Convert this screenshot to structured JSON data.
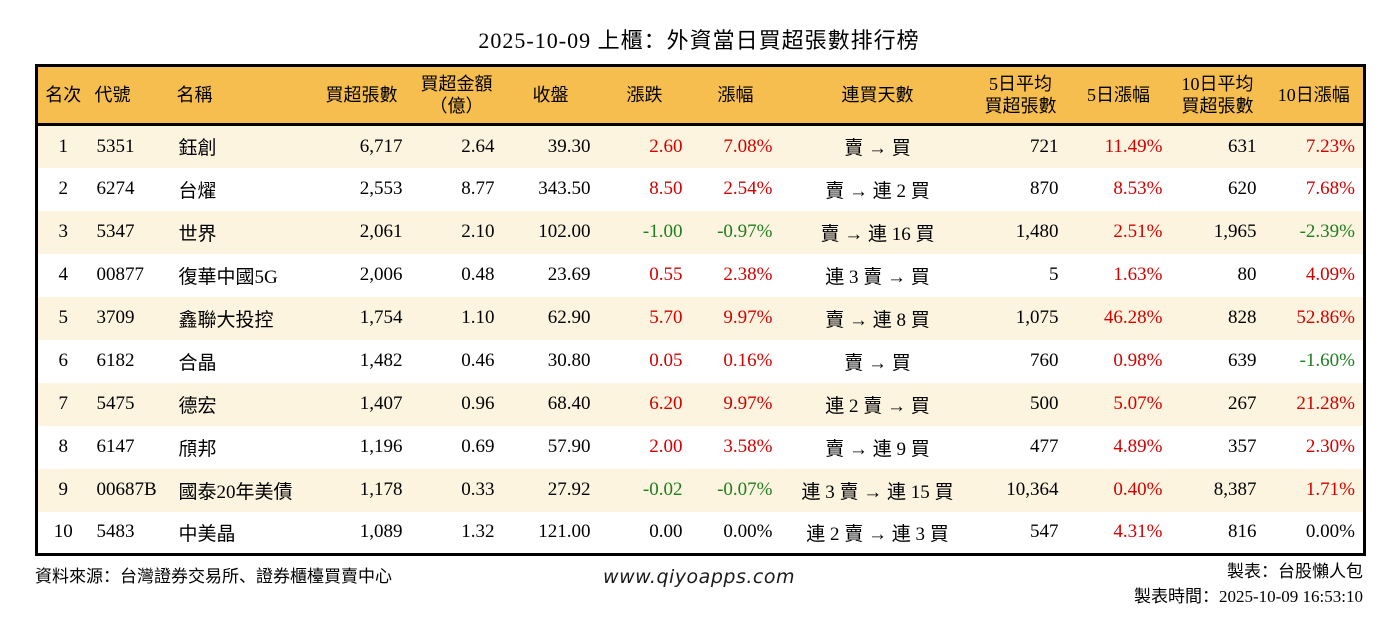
{
  "title": "2025-10-09 上櫃：外資當日買超張數排行榜",
  "colors": {
    "header_bg": "#f6be4e",
    "stripe_bg": "#fcf4df",
    "up_red": "#d40000",
    "down_green": "#1e7d1e",
    "border": "#000000"
  },
  "chart_data": {
    "type": "table",
    "title": "2025-10-09 上櫃：外資當日買超張數排行榜",
    "columns": [
      {
        "key": "rank",
        "label": "名次",
        "align": "center"
      },
      {
        "key": "code",
        "label": "代號",
        "align": "left"
      },
      {
        "key": "name",
        "label": "名稱",
        "align": "left"
      },
      {
        "key": "net_buy",
        "label": "買超張數",
        "align": "right"
      },
      {
        "key": "amount",
        "label_lines": [
          "買超金額",
          "（億）"
        ],
        "align": "right"
      },
      {
        "key": "close",
        "label": "收盤",
        "align": "right"
      },
      {
        "key": "change",
        "label": "漲跌",
        "align": "right"
      },
      {
        "key": "change_pct",
        "label": "漲幅",
        "align": "right"
      },
      {
        "key": "streak",
        "label": "連買天數",
        "align": "center"
      },
      {
        "key": "avg5",
        "label_lines": [
          "5日平均",
          "買超張數"
        ],
        "align": "right"
      },
      {
        "key": "pct5",
        "label": "5日漲幅",
        "align": "right"
      },
      {
        "key": "avg10",
        "label_lines": [
          "10日平均",
          "買超張數"
        ],
        "align": "right"
      },
      {
        "key": "pct10",
        "label": "10日漲幅",
        "align": "right"
      }
    ],
    "rows": [
      {
        "rank": "1",
        "code": "5351",
        "name": "鈺創",
        "net_buy": "6,717",
        "amount": "2.64",
        "close": "39.30",
        "change": "2.60",
        "change_color": "red",
        "change_pct": "7.08%",
        "change_pct_color": "red",
        "streak": "賣 → 買",
        "avg5": "721",
        "pct5": "11.49%",
        "pct5_color": "red",
        "avg10": "631",
        "pct10": "7.23%",
        "pct10_color": "red"
      },
      {
        "rank": "2",
        "code": "6274",
        "name": "台燿",
        "net_buy": "2,553",
        "amount": "8.77",
        "close": "343.50",
        "change": "8.50",
        "change_color": "red",
        "change_pct": "2.54%",
        "change_pct_color": "red",
        "streak": "賣 → 連 2 買",
        "avg5": "870",
        "pct5": "8.53%",
        "pct5_color": "red",
        "avg10": "620",
        "pct10": "7.68%",
        "pct10_color": "red"
      },
      {
        "rank": "3",
        "code": "5347",
        "name": "世界",
        "net_buy": "2,061",
        "amount": "2.10",
        "close": "102.00",
        "change": "-1.00",
        "change_color": "green",
        "change_pct": "-0.97%",
        "change_pct_color": "green",
        "streak": "賣 → 連 16 買",
        "avg5": "1,480",
        "pct5": "2.51%",
        "pct5_color": "red",
        "avg10": "1,965",
        "pct10": "-2.39%",
        "pct10_color": "green"
      },
      {
        "rank": "4",
        "code": "00877",
        "name": "復華中國5G",
        "net_buy": "2,006",
        "amount": "0.48",
        "close": "23.69",
        "change": "0.55",
        "change_color": "red",
        "change_pct": "2.38%",
        "change_pct_color": "red",
        "streak": "連 3 賣 → 買",
        "avg5": "5",
        "pct5": "1.63%",
        "pct5_color": "red",
        "avg10": "80",
        "pct10": "4.09%",
        "pct10_color": "red"
      },
      {
        "rank": "5",
        "code": "3709",
        "name": "鑫聯大投控",
        "net_buy": "1,754",
        "amount": "1.10",
        "close": "62.90",
        "change": "5.70",
        "change_color": "red",
        "change_pct": "9.97%",
        "change_pct_color": "red",
        "streak": "賣 → 連 8 買",
        "avg5": "1,075",
        "pct5": "46.28%",
        "pct5_color": "red",
        "avg10": "828",
        "pct10": "52.86%",
        "pct10_color": "red"
      },
      {
        "rank": "6",
        "code": "6182",
        "name": "合晶",
        "net_buy": "1,482",
        "amount": "0.46",
        "close": "30.80",
        "change": "0.05",
        "change_color": "red",
        "change_pct": "0.16%",
        "change_pct_color": "red",
        "streak": "賣 → 買",
        "avg5": "760",
        "pct5": "0.98%",
        "pct5_color": "red",
        "avg10": "639",
        "pct10": "-1.60%",
        "pct10_color": "green"
      },
      {
        "rank": "7",
        "code": "5475",
        "name": "德宏",
        "net_buy": "1,407",
        "amount": "0.96",
        "close": "68.40",
        "change": "6.20",
        "change_color": "red",
        "change_pct": "9.97%",
        "change_pct_color": "red",
        "streak": "連 2 賣 → 買",
        "avg5": "500",
        "pct5": "5.07%",
        "pct5_color": "red",
        "avg10": "267",
        "pct10": "21.28%",
        "pct10_color": "red"
      },
      {
        "rank": "8",
        "code": "6147",
        "name": "頎邦",
        "net_buy": "1,196",
        "amount": "0.69",
        "close": "57.90",
        "change": "2.00",
        "change_color": "red",
        "change_pct": "3.58%",
        "change_pct_color": "red",
        "streak": "賣 → 連 9 買",
        "avg5": "477",
        "pct5": "4.89%",
        "pct5_color": "red",
        "avg10": "357",
        "pct10": "2.30%",
        "pct10_color": "red"
      },
      {
        "rank": "9",
        "code": "00687B",
        "name": "國泰20年美債",
        "net_buy": "1,178",
        "amount": "0.33",
        "close": "27.92",
        "change": "-0.02",
        "change_color": "green",
        "change_pct": "-0.07%",
        "change_pct_color": "green",
        "streak": "連 3 賣 → 連 15 買",
        "avg5": "10,364",
        "pct5": "0.40%",
        "pct5_color": "red",
        "avg10": "8,387",
        "pct10": "1.71%",
        "pct10_color": "red"
      },
      {
        "rank": "10",
        "code": "5483",
        "name": "中美晶",
        "net_buy": "1,089",
        "amount": "1.32",
        "close": "121.00",
        "change": "0.00",
        "change_color": "black",
        "change_pct": "0.00%",
        "change_pct_color": "black",
        "streak": "連 2 賣 → 連 3 買",
        "avg5": "547",
        "pct5": "4.31%",
        "pct5_color": "red",
        "avg10": "816",
        "pct10": "0.00%",
        "pct10_color": "black"
      }
    ]
  },
  "footer": {
    "source": "資料來源：台灣證券交易所、證券櫃檯買賣中心",
    "site": "www.qiyoapps.com",
    "maker": "製表：台股懶人包",
    "time": "製表時間：2025-10-09 16:53:10"
  }
}
